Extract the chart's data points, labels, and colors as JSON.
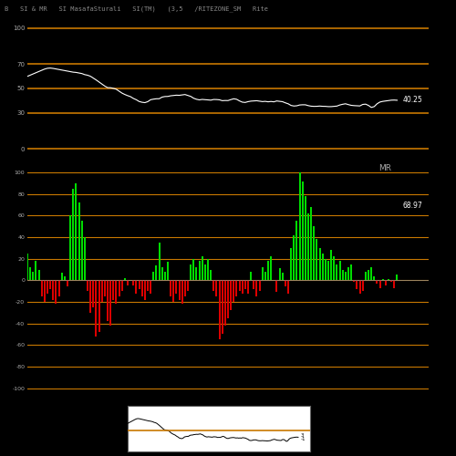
{
  "title_text": "B   SI & MR   SI MasafaSturali   SI(TM)   (3,5   /RITEZONE_SM   Rite",
  "background_color": "#000000",
  "orange_line_color": "#c87800",
  "white_line_color": "#ffffff",
  "green_bar_color": "#00dd00",
  "red_bar_color": "#dd0000",
  "rsi_value_label": "40.25",
  "mrsi_value_label": "68.97",
  "rsi_hlines": [
    100,
    70,
    50,
    30,
    0
  ],
  "rsi_yticks": [
    100,
    70,
    50,
    30,
    0
  ],
  "mrsi_hlines": [
    100,
    80,
    60,
    40,
    20,
    0,
    -20,
    -40,
    -60,
    -80,
    -100
  ],
  "mrsi_yticks": [
    100,
    80,
    60,
    40,
    20,
    0,
    -20,
    -40,
    -60,
    -80,
    -100
  ],
  "n_points": 130
}
